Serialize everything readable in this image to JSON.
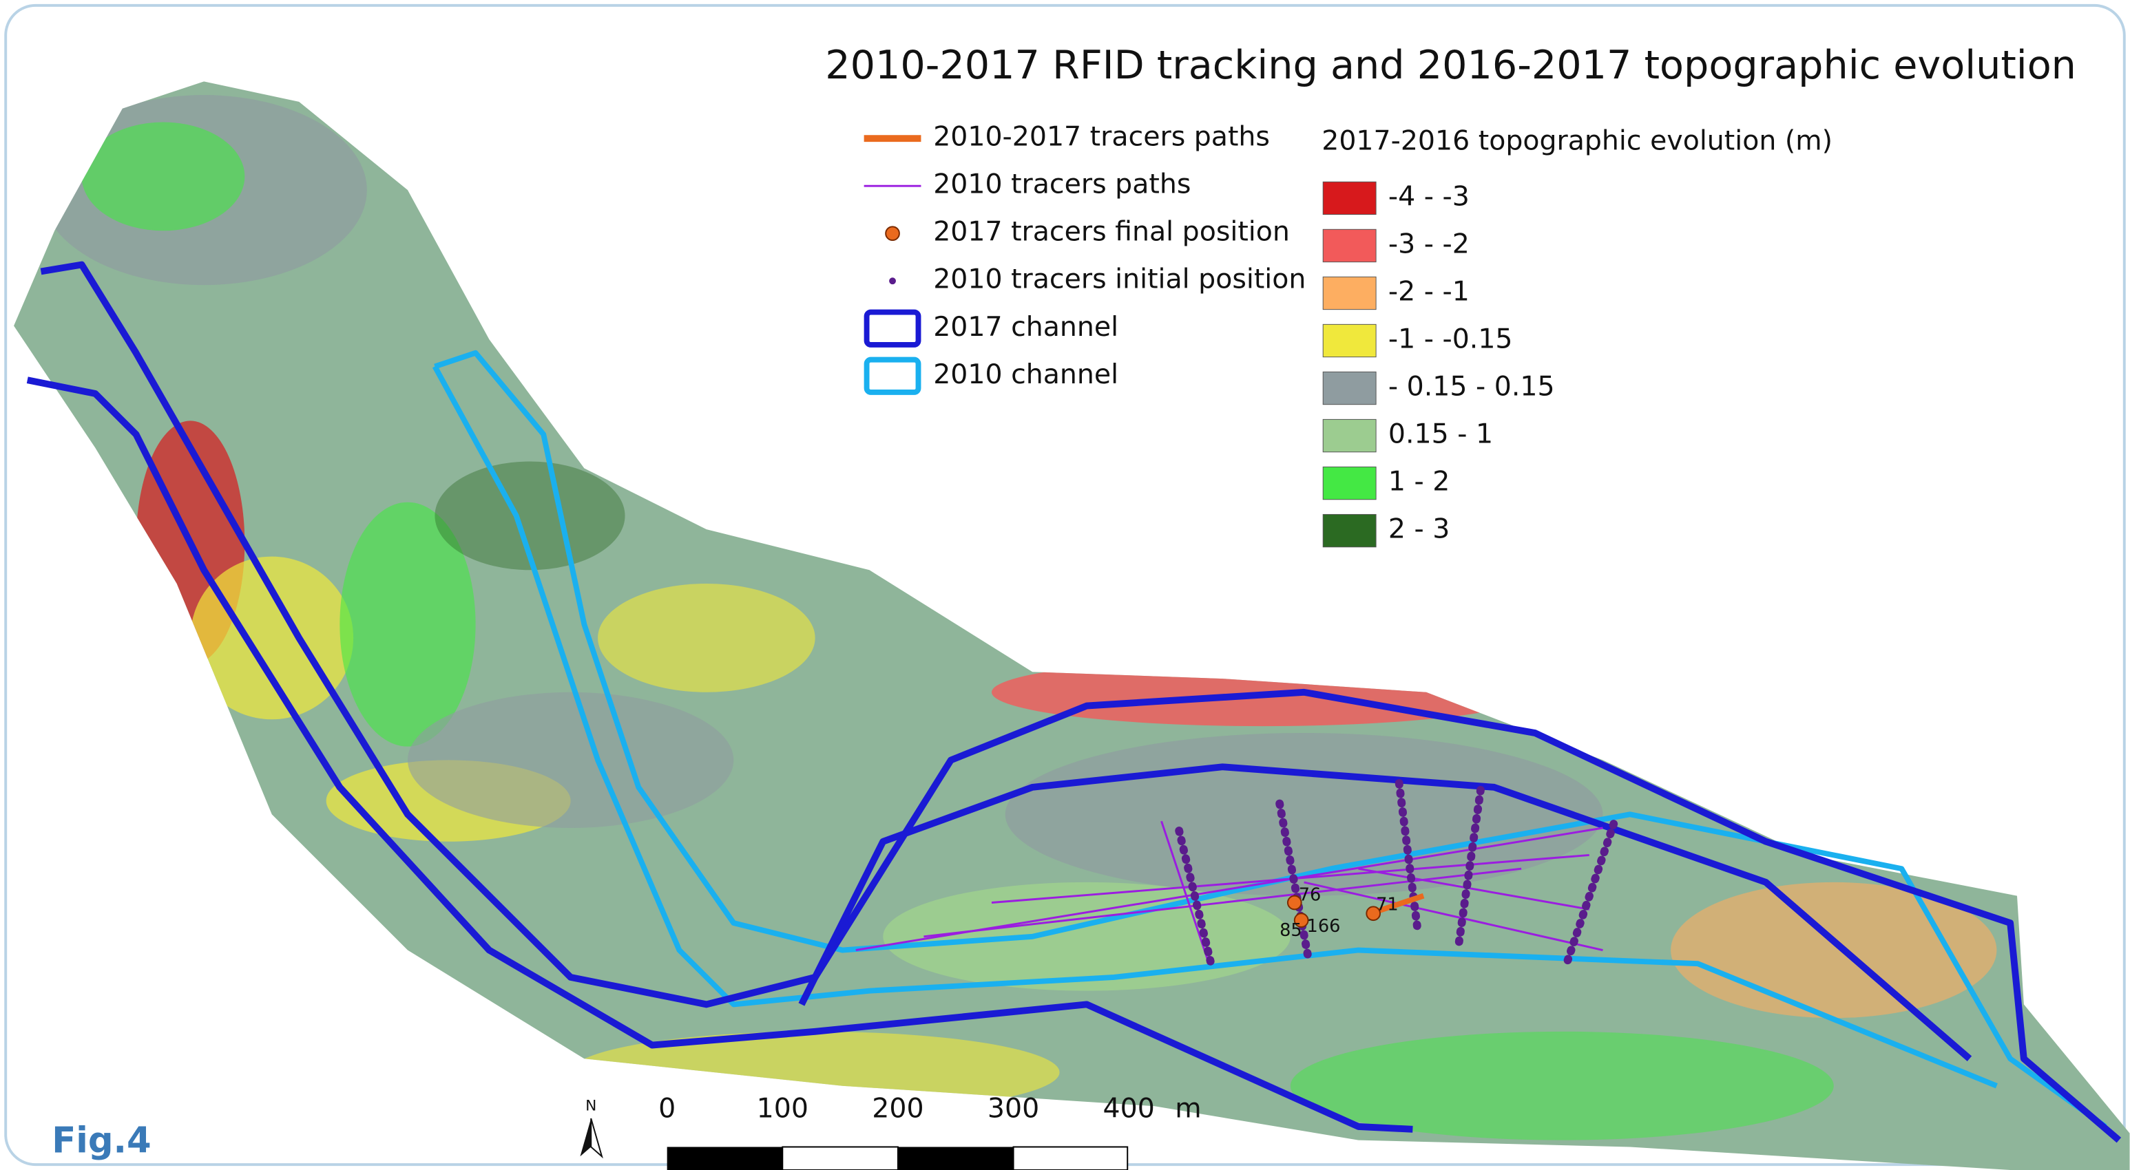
{
  "title": "2010-2017 RFID tracking and 2016-2017 topographic evolution",
  "legend": {
    "items": [
      {
        "label": "2010-2017 tracers paths"
      },
      {
        "label": "2010 tracers paths"
      },
      {
        "label": "2017 tracers final position"
      },
      {
        "label": "2010 tracers initial position"
      },
      {
        "label": "2017 channel"
      },
      {
        "label": "2010 channel"
      }
    ]
  },
  "elevation_legend": {
    "title": "2017-2016 topographic evolution (m)",
    "classes": [
      {
        "label": "-4 - -3",
        "color": "#d7191c"
      },
      {
        "label": "-3 - -2",
        "color": "#f25a5a"
      },
      {
        "label": "-2 - -1",
        "color": "#fdae61"
      },
      {
        "label": "-1 - -0.15",
        "color": "#f0e83c"
      },
      {
        "label": "- 0.15 - 0.15",
        "color": "#8f9ca0"
      },
      {
        "label": "0.15 - 1",
        "color": "#9ccc90"
      },
      {
        "label": "1 - 2",
        "color": "#44e844"
      },
      {
        "label": "2 - 3",
        "color": "#2b6a22"
      }
    ]
  },
  "tracer_labels": [
    "76",
    "85",
    "166",
    "71"
  ],
  "north": "N",
  "scale_bar": {
    "labels": [
      "0",
      "100",
      "200",
      "300",
      "400"
    ],
    "unit": "m"
  },
  "figure_label": "Fig.4"
}
